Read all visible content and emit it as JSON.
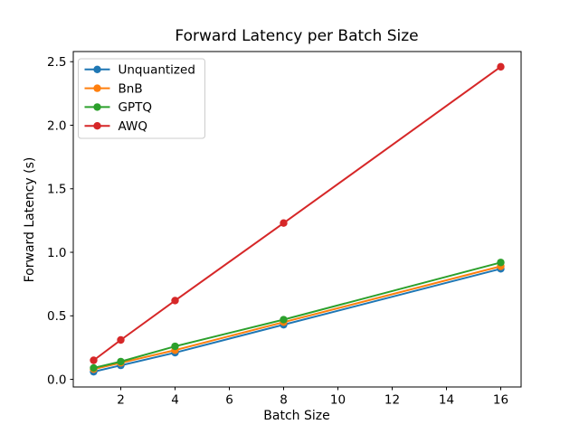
{
  "chart_data": {
    "type": "line",
    "title": "Forward Latency per Batch Size",
    "xlabel": "Batch Size",
    "ylabel": "Forward Latency (s)",
    "x": [
      1,
      2,
      4,
      8,
      16
    ],
    "series": [
      {
        "name": "Unquantized",
        "color": "#1f77b4",
        "values": [
          0.06,
          0.11,
          0.21,
          0.43,
          0.87
        ]
      },
      {
        "name": "BnB",
        "color": "#ff7f0e",
        "values": [
          0.08,
          0.13,
          0.23,
          0.45,
          0.89
        ]
      },
      {
        "name": "GPTQ",
        "color": "#2ca02c",
        "values": [
          0.09,
          0.14,
          0.26,
          0.47,
          0.92
        ]
      },
      {
        "name": "AWQ",
        "color": "#d62728",
        "values": [
          0.15,
          0.31,
          0.62,
          1.23,
          2.46
        ]
      }
    ],
    "xticks": [
      2,
      4,
      6,
      8,
      10,
      12,
      14,
      16
    ],
    "yticks": [
      0.0,
      0.5,
      1.0,
      1.5,
      2.0,
      2.5
    ],
    "xlim": [
      0.25,
      16.75
    ],
    "ylim": [
      -0.06,
      2.58
    ],
    "grid": false,
    "marker": "o",
    "legend_position": "upper left",
    "legend_entries": [
      "Unquantized",
      "BnB",
      "GPTQ",
      "AWQ"
    ],
    "colors": {
      "spine": "#000000",
      "text": "#000000",
      "legend_border": "#cccccc",
      "background": "#ffffff"
    }
  }
}
